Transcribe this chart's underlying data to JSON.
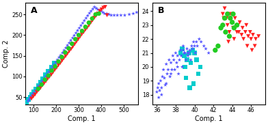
{
  "panel_A": {
    "title": "A",
    "xlabel": "Comp. 1",
    "ylabel": "Comp. 2",
    "xlim": [
      62,
      565
    ],
    "ylim": [
      32,
      278
    ],
    "xticks": [
      100,
      200,
      300,
      400,
      500
    ],
    "yticks": [
      50,
      100,
      150,
      200,
      250
    ],
    "groups": [
      {
        "key": "blue_stars",
        "x": [
          75,
          80,
          85,
          90,
          95,
          100,
          108,
          115,
          122,
          130,
          138,
          145,
          153,
          160,
          168,
          175,
          183,
          190,
          198,
          205,
          213,
          220,
          228,
          235,
          243,
          250,
          258,
          265,
          273,
          280,
          288,
          295,
          303,
          310,
          318,
          325,
          333,
          340,
          348,
          355,
          363,
          370,
          378,
          385,
          393,
          400,
          408,
          415,
          425,
          435,
          445,
          458,
          472,
          488,
          505,
          525,
          543,
          558
        ],
        "y": [
          40,
          44,
          48,
          52,
          56,
          60,
          66,
          72,
          77,
          83,
          89,
          94,
          100,
          106,
          111,
          117,
          123,
          128,
          134,
          140,
          146,
          151,
          157,
          163,
          169,
          175,
          181,
          187,
          193,
          199,
          205,
          211,
          217,
          223,
          229,
          235,
          241,
          247,
          253,
          258,
          263,
          268,
          265,
          262,
          260,
          258,
          255,
          252,
          252,
          250,
          248,
          248,
          248,
          248,
          248,
          250,
          252,
          255
        ],
        "color": "#5555ff",
        "marker": "*",
        "size": 18
      },
      {
        "key": "red_triangles",
        "x": [
          90,
          98,
          106,
          114,
          122,
          130,
          138,
          146,
          154,
          162,
          170,
          178,
          186,
          194,
          202,
          210,
          218,
          226,
          234,
          242,
          250,
          258,
          266,
          274,
          282,
          290,
          298,
          306,
          314,
          322,
          330,
          338,
          346,
          354,
          362,
          370,
          378,
          386,
          394,
          402,
          410,
          418,
          426
        ],
        "y": [
          46,
          51,
          56,
          62,
          67,
          72,
          78,
          83,
          88,
          94,
          99,
          104,
          110,
          116,
          121,
          127,
          132,
          138,
          144,
          149,
          155,
          161,
          166,
          172,
          178,
          184,
          190,
          196,
          202,
          207,
          213,
          218,
          224,
          230,
          236,
          242,
          247,
          252,
          258,
          262,
          266,
          268,
          248
        ],
        "color": "#ff2020",
        "marker": "v",
        "size": 18
      },
      {
        "key": "green_circles",
        "x": [
          120,
          135,
          150,
          165,
          180,
          195,
          210,
          225,
          240,
          255,
          270,
          285,
          300,
          315,
          330,
          345,
          360,
          375,
          390
        ],
        "y": [
          70,
          80,
          92,
          102,
          114,
          124,
          136,
          147,
          158,
          168,
          179,
          190,
          200,
          210,
          220,
          230,
          240,
          250,
          252
        ],
        "color": "#22cc22",
        "marker": "o",
        "size": 22
      },
      {
        "key": "cyan_squares",
        "x": [
          68,
          76,
          84,
          92,
          100,
          110,
          120,
          130,
          140,
          152,
          165,
          178,
          192
        ],
        "y": [
          38,
          44,
          50,
          56,
          62,
          70,
          78,
          86,
          95,
          104,
          113,
          122,
          132
        ],
        "color": "#00cccc",
        "marker": "s",
        "size": 22
      }
    ]
  },
  "panel_B": {
    "title": "B",
    "xlabel": "Comp. 1",
    "ylabel": "",
    "xlim": [
      35.5,
      47.5
    ],
    "ylim": [
      17.3,
      24.6
    ],
    "xticks": [
      36,
      38,
      40,
      42,
      44,
      46
    ],
    "yticks": [
      18,
      19,
      20,
      21,
      22,
      23,
      24
    ],
    "groups": [
      {
        "key": "blue_stars",
        "x": [
          36.0,
          36.1,
          36.2,
          36.3,
          36.4,
          36.5,
          36.6,
          36.7,
          36.8,
          36.9,
          37.0,
          37.1,
          37.2,
          37.3,
          37.4,
          37.5,
          37.6,
          37.7,
          37.8,
          37.9,
          38.0,
          38.1,
          38.2,
          38.3,
          38.4,
          38.5,
          38.6,
          38.7,
          38.8,
          38.9,
          39.0,
          39.1,
          39.2,
          39.3,
          39.4,
          39.5,
          39.6,
          39.7,
          39.8,
          39.9,
          40.0,
          40.1,
          40.2,
          40.3,
          40.5,
          40.7,
          41.0,
          41.2,
          41.5,
          36.2,
          36.5,
          37.0,
          37.5,
          38.2,
          38.8,
          39.3
        ],
        "y": [
          18.2,
          18.5,
          18.8,
          18.3,
          19.0,
          18.5,
          19.3,
          19.8,
          19.2,
          18.7,
          20.2,
          19.5,
          19.8,
          20.5,
          19.3,
          20.3,
          19.8,
          20.8,
          20.5,
          19.8,
          21.0,
          20.3,
          20.8,
          19.5,
          20.5,
          21.2,
          20.8,
          20.0,
          21.5,
          21.0,
          21.0,
          20.5,
          21.3,
          21.0,
          21.0,
          21.2,
          20.5,
          21.5,
          21.3,
          21.8,
          21.5,
          21.0,
          21.8,
          21.5,
          22.0,
          21.8,
          21.5,
          21.3,
          21.0,
          17.8,
          18.0,
          18.8,
          19.5,
          20.0,
          21.2,
          20.8
        ],
        "color": "#5555ff",
        "marker": "*",
        "size": 18
      },
      {
        "key": "red_triangles",
        "x": [
          43.0,
          43.2,
          43.4,
          43.5,
          43.7,
          43.8,
          44.0,
          44.1,
          44.3,
          44.5,
          44.6,
          44.8,
          45.0,
          45.2,
          45.4,
          45.5,
          45.7,
          45.9,
          46.0,
          46.2,
          46.5,
          46.8,
          43.1,
          43.6,
          44.2,
          44.7,
          45.1,
          45.6,
          46.1,
          46.4
        ],
        "y": [
          23.8,
          24.2,
          23.5,
          23.0,
          22.5,
          23.8,
          23.2,
          22.8,
          23.5,
          22.5,
          23.0,
          23.2,
          22.3,
          22.0,
          22.5,
          23.0,
          22.2,
          22.5,
          22.0,
          22.3,
          22.0,
          22.2,
          23.5,
          21.8,
          22.0,
          22.5,
          22.8,
          21.5,
          21.2,
          21.5
        ],
        "color": "#ff2020",
        "marker": "v",
        "size": 18
      },
      {
        "key": "green_circles",
        "x": [
          43.0,
          43.2,
          43.5,
          43.8,
          44.0,
          44.2,
          44.5,
          43.3,
          43.7,
          44.1,
          42.2,
          42.5,
          42.8
        ],
        "y": [
          23.0,
          23.5,
          23.8,
          23.5,
          23.2,
          22.8,
          23.0,
          22.5,
          22.2,
          23.8,
          21.2,
          21.5,
          22.8
        ],
        "color": "#22cc22",
        "marker": "o",
        "size": 28
      },
      {
        "key": "cyan_squares",
        "x": [
          38.5,
          38.7,
          38.9,
          39.0,
          39.2,
          39.4,
          39.6,
          39.8,
          40.0,
          40.2,
          40.4,
          40.6,
          39.1,
          39.5,
          39.9
        ],
        "y": [
          21.0,
          21.3,
          20.8,
          20.0,
          20.5,
          21.0,
          20.3,
          21.2,
          21.0,
          20.5,
          19.5,
          20.0,
          19.2,
          18.5,
          18.8
        ],
        "color": "#00cccc",
        "marker": "s",
        "size": 22
      }
    ]
  }
}
